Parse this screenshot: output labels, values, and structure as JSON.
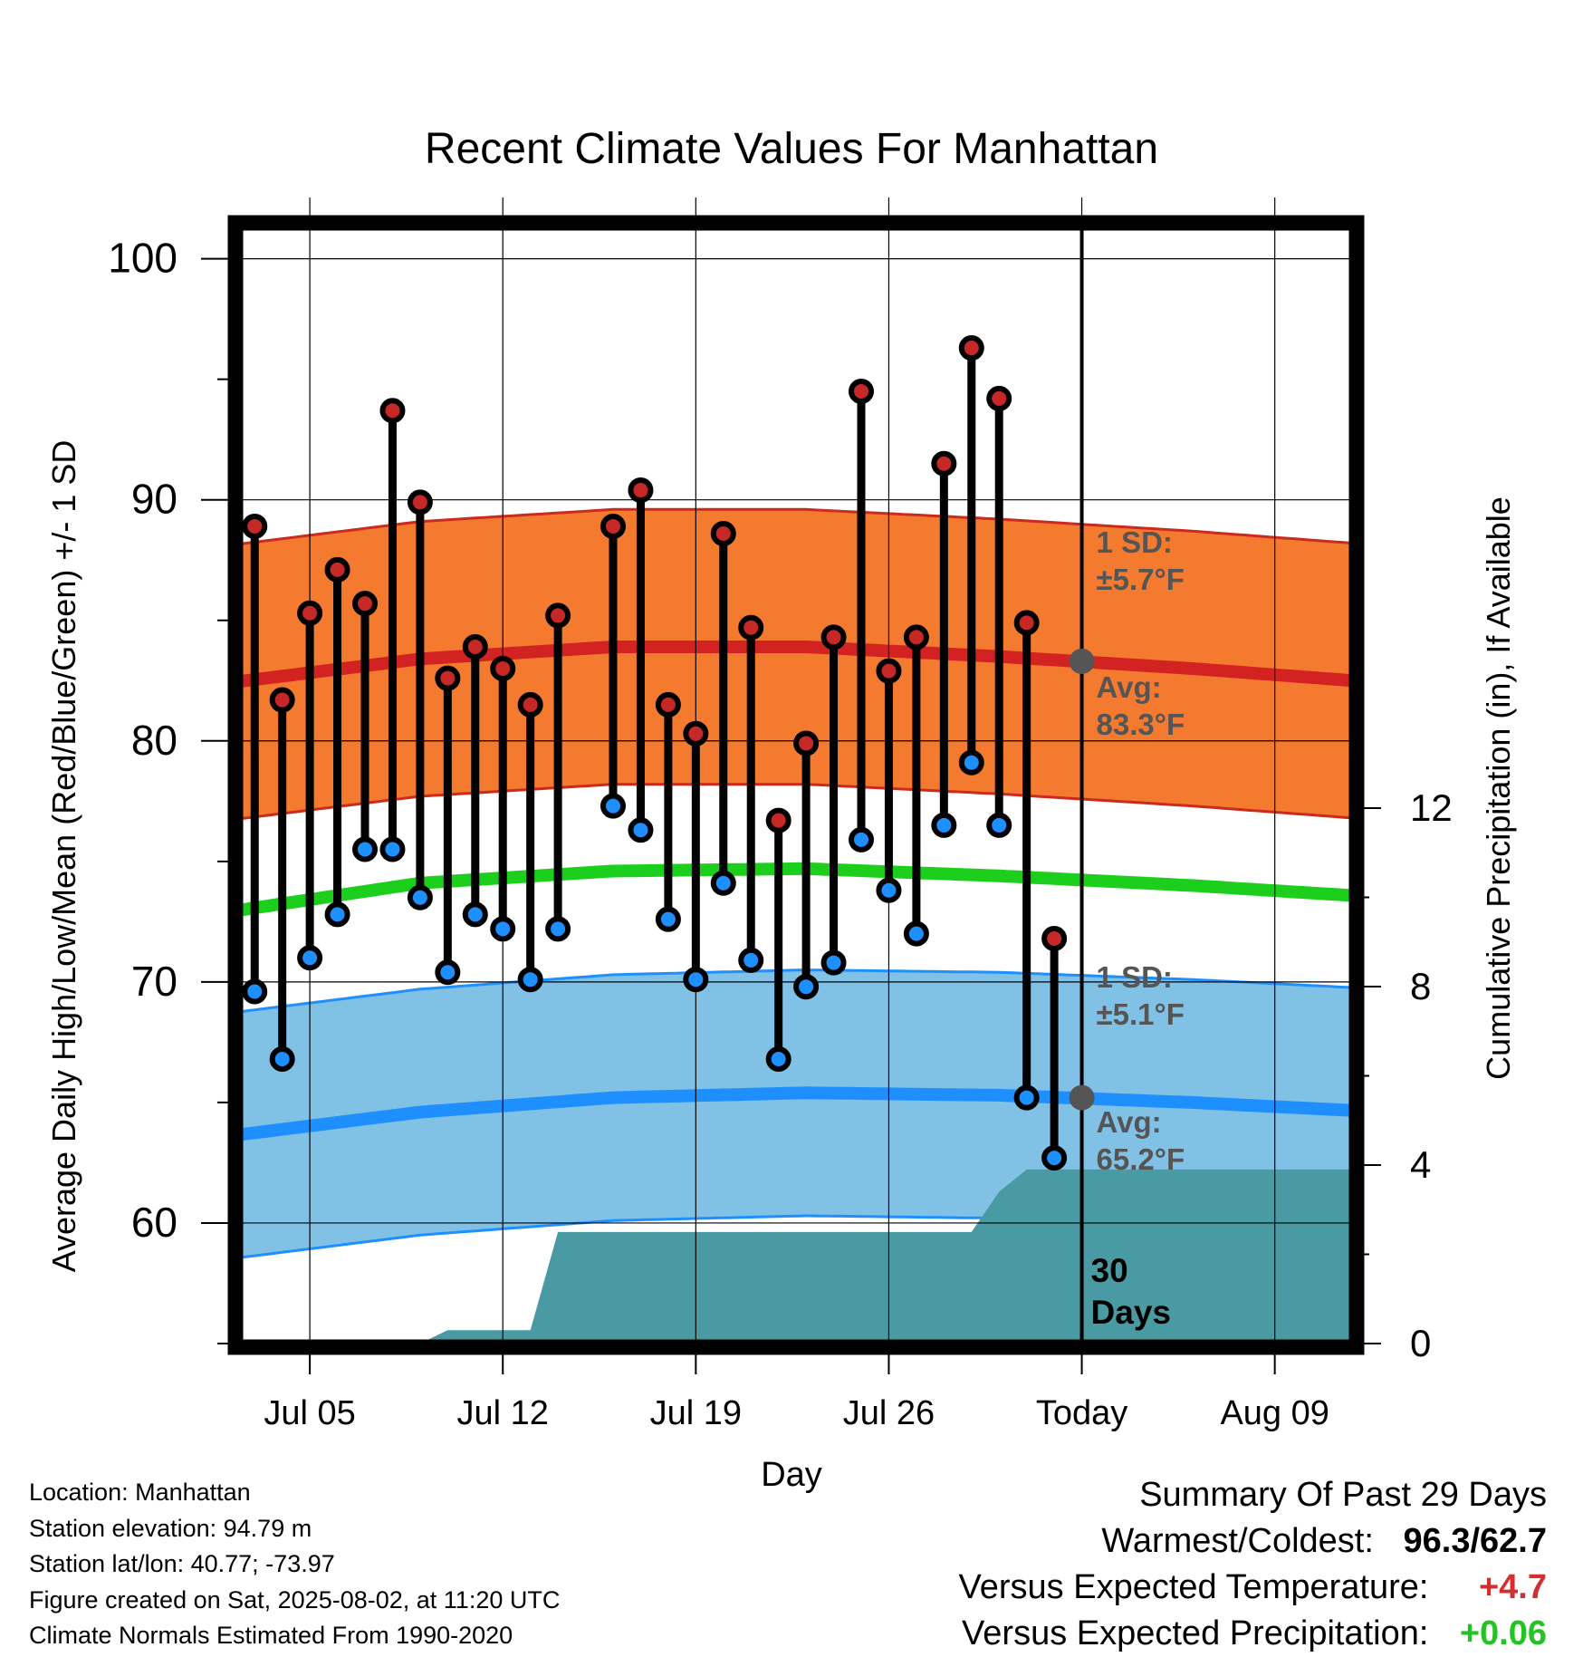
{
  "chart_data": {
    "type": "line",
    "title": "Recent Climate Values For Manhattan",
    "xlabel": "Day",
    "ylabel": "Average Daily High/Low/Mean (Red/Blue/Green) +/- 1 SD",
    "y2label": "Cumulative Precipitation (in), If Available",
    "ylim": [
      55,
      101.5
    ],
    "y2lim": [
      0,
      25
    ],
    "x_range": [
      "2025-07-02",
      "2025-08-13"
    ],
    "x_ticks": [
      {
        "date": "2025-07-05",
        "label": "Jul 05"
      },
      {
        "date": "2025-07-12",
        "label": "Jul 12"
      },
      {
        "date": "2025-07-19",
        "label": "Jul 19"
      },
      {
        "date": "2025-07-26",
        "label": "Jul 26"
      },
      {
        "date": "2025-08-02",
        "label": "Today"
      },
      {
        "date": "2025-08-09",
        "label": "Aug 09"
      }
    ],
    "y_ticks": [
      60,
      70,
      80,
      90,
      100
    ],
    "y2_ticks": [
      0,
      4,
      8,
      12
    ],
    "grid": true,
    "daily": {
      "dates": [
        "2025-07-03",
        "2025-07-04",
        "2025-07-05",
        "2025-07-06",
        "2025-07-07",
        "2025-07-08",
        "2025-07-09",
        "2025-07-10",
        "2025-07-11",
        "2025-07-12",
        "2025-07-13",
        "2025-07-14",
        "2025-07-16",
        "2025-07-17",
        "2025-07-18",
        "2025-07-19",
        "2025-07-20",
        "2025-07-21",
        "2025-07-22",
        "2025-07-23",
        "2025-07-24",
        "2025-07-25",
        "2025-07-26",
        "2025-07-27",
        "2025-07-28",
        "2025-07-29",
        "2025-07-30",
        "2025-07-31",
        "2025-08-01"
      ],
      "highs": [
        88.9,
        81.7,
        85.3,
        87.1,
        85.7,
        93.7,
        89.9,
        82.6,
        83.9,
        83.0,
        81.5,
        85.2,
        88.9,
        90.4,
        81.5,
        80.3,
        88.6,
        84.7,
        76.7,
        79.9,
        84.3,
        94.5,
        82.9,
        84.3,
        91.5,
        96.3,
        94.2,
        84.9,
        71.8
      ],
      "lows": [
        69.6,
        66.8,
        71.0,
        72.8,
        75.5,
        75.5,
        73.5,
        70.4,
        72.8,
        72.2,
        70.1,
        72.2,
        77.3,
        76.3,
        72.6,
        70.1,
        74.1,
        70.9,
        66.8,
        69.8,
        70.8,
        75.9,
        73.8,
        72.0,
        76.5,
        79.1,
        76.5,
        65.2,
        62.7
      ]
    },
    "normals": [
      {
        "name": "Average daily high",
        "color": "#d32222",
        "values": [
          {
            "date": "2025-07-02",
            "value": 82.4
          },
          {
            "date": "2025-07-09",
            "value": 83.4
          },
          {
            "date": "2025-07-16",
            "value": 83.9
          },
          {
            "date": "2025-07-23",
            "value": 83.9
          },
          {
            "date": "2025-07-30",
            "value": 83.5
          },
          {
            "date": "2025-08-06",
            "value": 83.0
          },
          {
            "date": "2025-08-13",
            "value": 82.4
          }
        ]
      },
      {
        "name": "Average daily mean",
        "color": "#1dcf1d",
        "values": [
          {
            "date": "2025-07-02",
            "value": 72.9
          },
          {
            "date": "2025-07-09",
            "value": 74.1
          },
          {
            "date": "2025-07-16",
            "value": 74.6
          },
          {
            "date": "2025-07-23",
            "value": 74.7
          },
          {
            "date": "2025-07-30",
            "value": 74.4
          },
          {
            "date": "2025-08-06",
            "value": 74.0
          },
          {
            "date": "2025-08-13",
            "value": 73.5
          }
        ]
      },
      {
        "name": "Average daily low",
        "color": "#1e8fff",
        "values": [
          {
            "date": "2025-07-02",
            "value": 63.6
          },
          {
            "date": "2025-07-09",
            "value": 64.6
          },
          {
            "date": "2025-07-16",
            "value": 65.2
          },
          {
            "date": "2025-07-23",
            "value": 65.4
          },
          {
            "date": "2025-07-30",
            "value": 65.3
          },
          {
            "date": "2025-08-06",
            "value": 65.0
          },
          {
            "date": "2025-08-13",
            "value": 64.6
          }
        ]
      }
    ],
    "sd_high": 5.7,
    "sd_low": 5.1,
    "precipitation": [
      {
        "date": "2025-07-02",
        "value": 0.0
      },
      {
        "date": "2025-07-09",
        "value": 0.0
      },
      {
        "date": "2025-07-10",
        "value": 0.3
      },
      {
        "date": "2025-07-13",
        "value": 0.3
      },
      {
        "date": "2025-07-14",
        "value": 2.5
      },
      {
        "date": "2025-07-29",
        "value": 2.5
      },
      {
        "date": "2025-07-30",
        "value": 3.4
      },
      {
        "date": "2025-07-31",
        "value": 3.9
      },
      {
        "date": "2025-08-13",
        "value": 3.9
      }
    ],
    "annotations": {
      "high_sd": "1 SD:\n±5.7°F",
      "high_avg": "Avg:\n83.3°F",
      "low_sd": "1 SD:\n±5.1°F",
      "low_avg": "Avg:\n65.2°F",
      "days": "30\nDays",
      "today_high_avg": 83.3,
      "today_low_avg": 65.2
    },
    "colors": {
      "high_band": "#f47a30",
      "low_band": "#82c1e6",
      "precip": "#4a9aa4",
      "high_marker": "#c62828",
      "low_marker": "#1e8fff"
    }
  },
  "footer": {
    "location": "Location: Manhattan",
    "elevation": "Station elevation: 94.79 m",
    "latlon": "Station lat/lon: 40.77; -73.97",
    "created": "Figure created on Sat, 2025-08-02, at 11:20 UTC",
    "normals": "Climate Normals Estimated From 1990-2020"
  },
  "summary": {
    "heading": "Summary Of Past 29 Days",
    "warm_cold_label": "Warmest/Coldest:",
    "warmest": "96.3",
    "sep": "/",
    "coldest": "62.7",
    "temp_label": "Versus Expected Temperature:",
    "temp_value": "+4.7",
    "precip_label": "Versus Expected Precipitation:",
    "precip_value": "+0.06"
  }
}
